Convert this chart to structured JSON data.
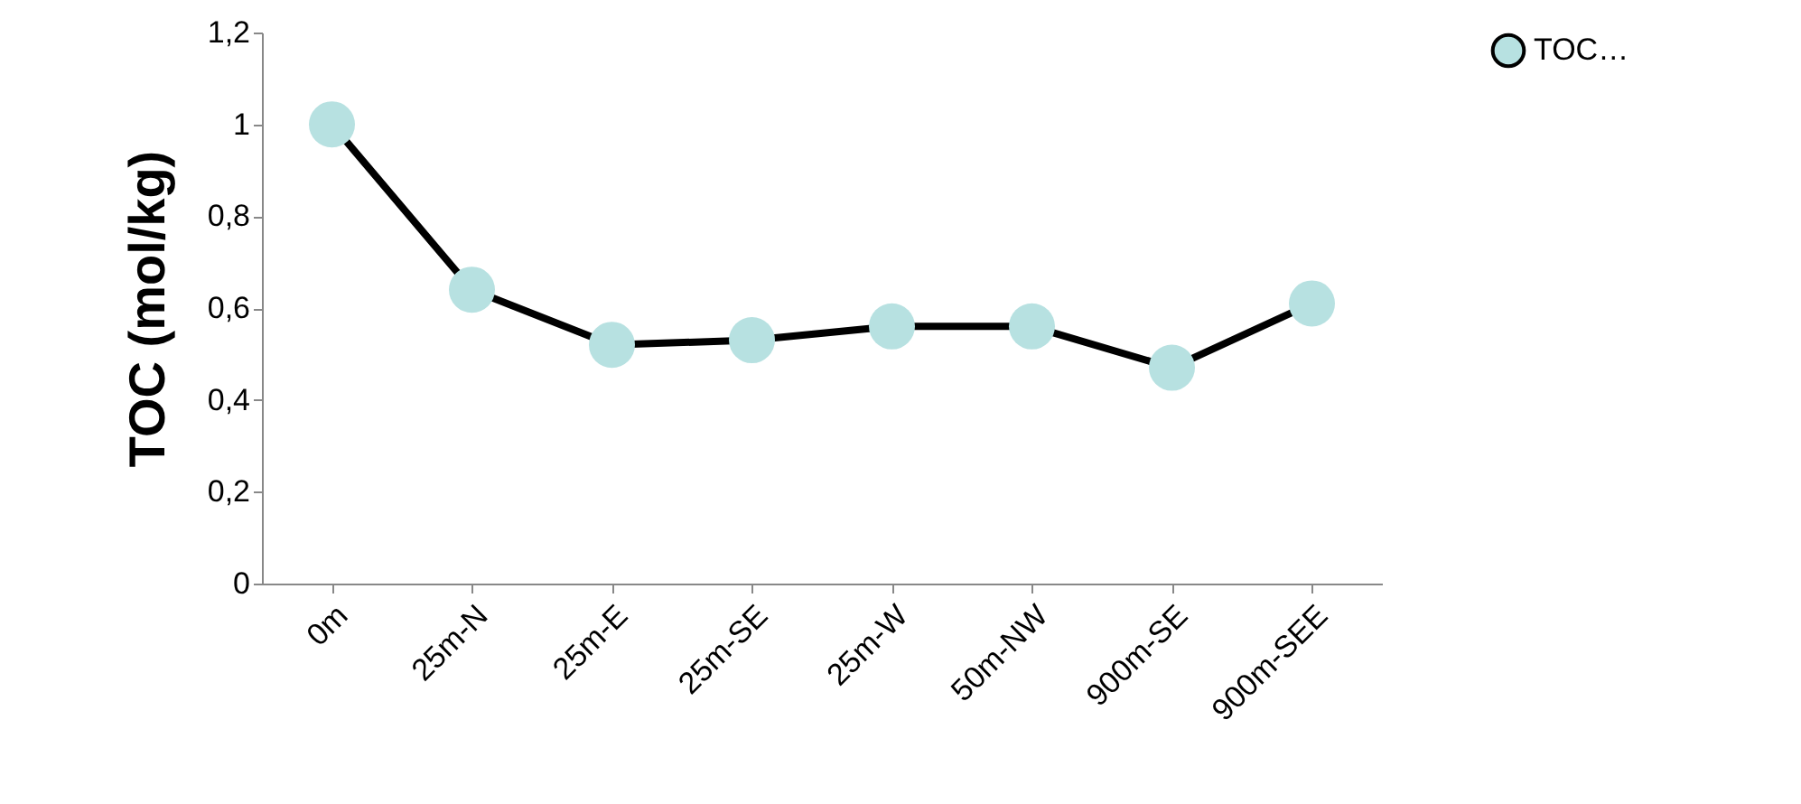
{
  "chart_data": {
    "type": "line",
    "ylabel": "TOC (mol/kg)",
    "categories": [
      "0m",
      "25m-N",
      "25m-E",
      "25m-SE",
      "25m-W",
      "50m-NW",
      "900m-SE",
      "900m-SEE"
    ],
    "series": [
      {
        "name": "TOC…",
        "color": "#b7e1e1",
        "values": [
          1.0,
          0.64,
          0.52,
          0.53,
          0.56,
          0.56,
          0.47,
          0.61
        ]
      }
    ],
    "ylim": [
      0,
      1.2
    ],
    "yticks": [
      0,
      {
        "value": 0.2,
        "label": "0,2"
      },
      {
        "value": 0.4,
        "label": "0,4"
      },
      {
        "value": 0.6,
        "label": "0,6"
      },
      {
        "value": 0.8,
        "label": "0,8"
      },
      1,
      {
        "value": 1.2,
        "label": "1,2"
      }
    ],
    "grid": false,
    "legend": "right",
    "marker": "circle",
    "line_style": "solid"
  }
}
